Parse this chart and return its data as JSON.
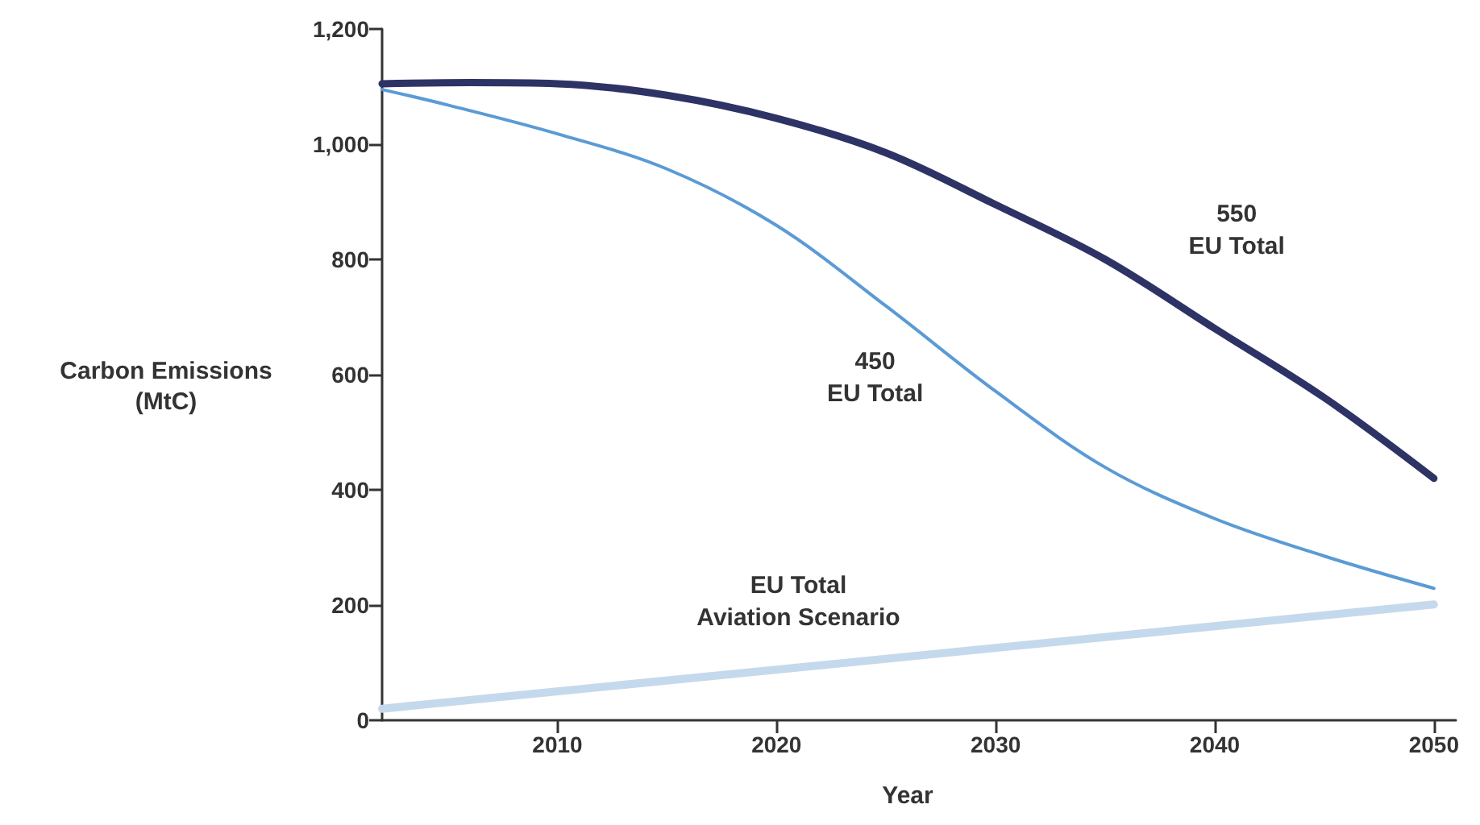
{
  "chart_data": {
    "type": "line",
    "xlabel": "Year",
    "ylabel": "Carbon Emissions\n(MtC)",
    "xlim": [
      2002,
      2051
    ],
    "xticks": [
      2010,
      2020,
      2030,
      2040,
      2050
    ],
    "ylim": [
      0,
      1200
    ],
    "yticks": [
      0,
      200,
      400,
      600,
      800,
      {
        "value": 1000,
        "label": "1,000"
      },
      {
        "value": 1200,
        "label": "1,200"
      }
    ],
    "grid": false,
    "marker": "none",
    "line_style": "solid",
    "series": [
      {
        "name": "550\nEU Total",
        "color": "#2e3366",
        "x": [
          2002,
          2006,
          2010,
          2015,
          2020,
          2025,
          2030,
          2035,
          2040,
          2045,
          2050
        ],
        "values": [
          1105,
          1107,
          1105,
          1085,
          1045,
          985,
          895,
          800,
          680,
          560,
          420
        ]
      },
      {
        "name": "450\nEU Total",
        "color": "#5b9bd5",
        "x": [
          2002,
          2005,
          2010,
          2015,
          2020,
          2025,
          2030,
          2035,
          2040,
          2045,
          2050
        ],
        "values": [
          1095,
          1068,
          1018,
          957,
          859,
          719,
          571,
          439,
          350,
          285,
          229
        ]
      },
      {
        "name": "EU Total\nAviation Scenario",
        "color": "#c5d9ec",
        "x": [
          2002,
          2050
        ],
        "values": [
          20,
          201
        ]
      }
    ]
  }
}
